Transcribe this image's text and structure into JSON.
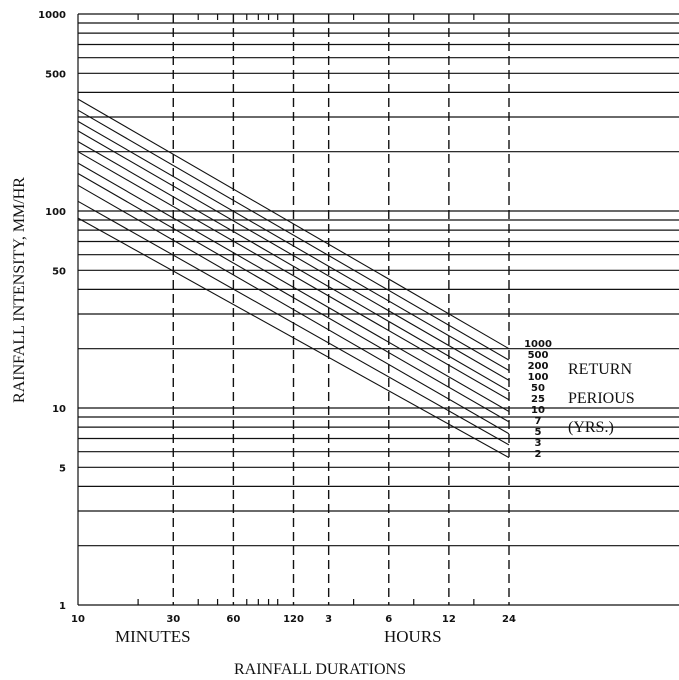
{
  "chart_data": {
    "type": "line",
    "xlabel": "RAINFALL DURATIONS",
    "ylabel": "RAINFALL INTENSITY, MM/HR",
    "x_group_labels": [
      "MINUTES",
      "HOURS"
    ],
    "x_scale": "log",
    "y_scale": "log",
    "xlim": [
      10,
      1440
    ],
    "ylim": [
      1,
      1000
    ],
    "x_ticks": [
      {
        "minutes": 10,
        "label": "10"
      },
      {
        "minutes": 30,
        "label": "30"
      },
      {
        "minutes": 60,
        "label": "60"
      },
      {
        "minutes": 120,
        "label": "120"
      },
      {
        "minutes": 180,
        "label": "3"
      },
      {
        "minutes": 360,
        "label": "6"
      },
      {
        "minutes": 720,
        "label": "12"
      },
      {
        "minutes": 1440,
        "label": "24"
      }
    ],
    "y_ticks": [
      {
        "value": 1,
        "label": "1"
      },
      {
        "value": 5,
        "label": "5"
      },
      {
        "value": 10,
        "label": "10"
      },
      {
        "value": 50,
        "label": "50"
      },
      {
        "value": 100,
        "label": "100"
      },
      {
        "value": 500,
        "label": "500"
      },
      {
        "value": 1000,
        "label": "1000"
      }
    ],
    "grid": true,
    "legend": {
      "title_lines": [
        "RETURN",
        "PERIOUS",
        "(YRS.)"
      ],
      "placement": "right",
      "entries": [
        "1000",
        "500",
        "200",
        "100",
        "50",
        "25",
        "10",
        "7",
        "5",
        "3",
        "2"
      ]
    },
    "series": [
      {
        "name": "1000",
        "x": [
          10,
          1440
        ],
        "y": [
          370,
          20
        ]
      },
      {
        "name": "500",
        "x": [
          10,
          1440
        ],
        "y": [
          325,
          17.5
        ]
      },
      {
        "name": "200",
        "x": [
          10,
          1440
        ],
        "y": [
          285,
          15.5
        ]
      },
      {
        "name": "100",
        "x": [
          10,
          1440
        ],
        "y": [
          255,
          13.8
        ]
      },
      {
        "name": "50",
        "x": [
          10,
          1440
        ],
        "y": [
          225,
          12.2
        ]
      },
      {
        "name": "25",
        "x": [
          10,
          1440
        ],
        "y": [
          200,
          11
        ]
      },
      {
        "name": "10",
        "x": [
          10,
          1440
        ],
        "y": [
          175,
          9.6
        ]
      },
      {
        "name": "7",
        "x": [
          10,
          1440
        ],
        "y": [
          155,
          8.5
        ]
      },
      {
        "name": "5",
        "x": [
          10,
          1440
        ],
        "y": [
          135,
          7.4
        ]
      },
      {
        "name": "3",
        "x": [
          10,
          1440
        ],
        "y": [
          112,
          6.5
        ]
      },
      {
        "name": "2",
        "x": [
          10,
          1440
        ],
        "y": [
          92,
          5.6
        ]
      }
    ]
  }
}
